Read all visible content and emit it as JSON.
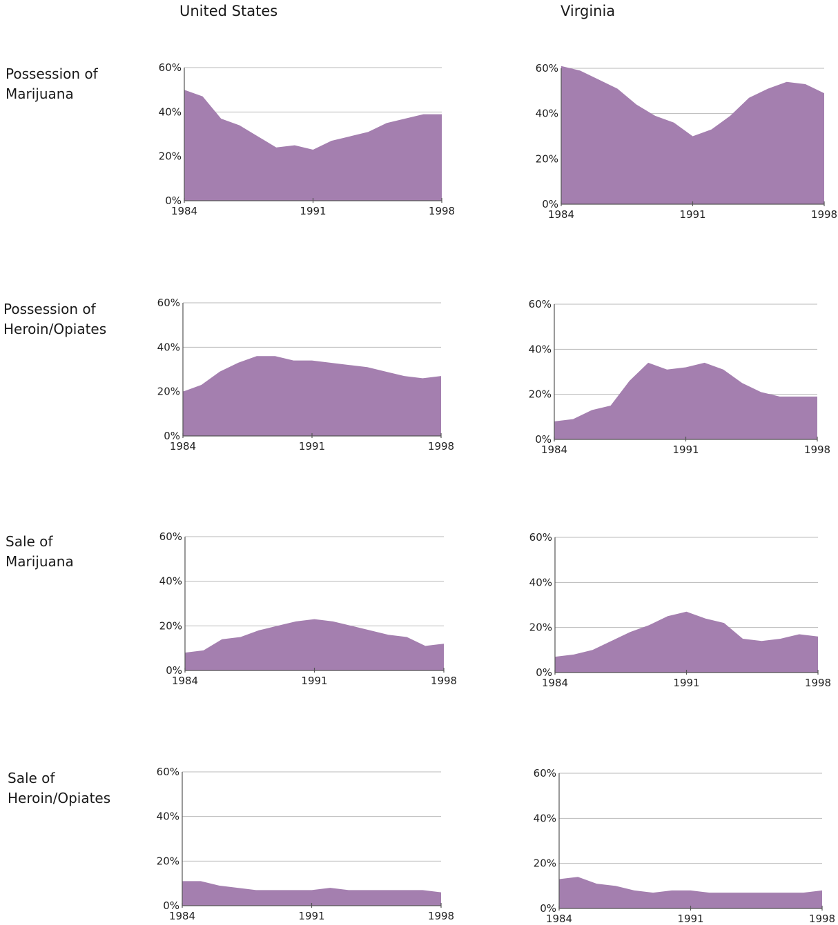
{
  "column_headers": [
    "United States",
    "Virginia"
  ],
  "row_labels": [
    [
      "Possession of",
      "Marijuana"
    ],
    [
      "Possession of",
      "Heroin/Opiates"
    ],
    [
      "Sale of",
      "Marijuana"
    ],
    [
      "Sale of",
      "Heroin/Opiates"
    ]
  ],
  "chart_data": [
    {
      "type": "area",
      "row": "Possession of Marijuana",
      "column": "United States",
      "x": [
        1984,
        1985,
        1986,
        1987,
        1988,
        1989,
        1990,
        1991,
        1992,
        1993,
        1994,
        1995,
        1996,
        1997,
        1998
      ],
      "values": [
        50,
        47,
        37,
        34,
        29,
        24,
        25,
        23,
        27,
        29,
        31,
        35,
        37,
        39,
        39
      ],
      "ylim": [
        0,
        60
      ],
      "yticks": [
        "0%",
        "20%",
        "40%",
        "60%"
      ],
      "xticks": [
        "1984",
        "1991",
        "1998"
      ],
      "grid": true,
      "color": "#a47faf"
    },
    {
      "type": "area",
      "row": "Possession of Marijuana",
      "column": "Virginia",
      "x": [
        1984,
        1985,
        1986,
        1987,
        1988,
        1989,
        1990,
        1991,
        1992,
        1993,
        1994,
        1995,
        1996,
        1997,
        1998
      ],
      "values": [
        61,
        59,
        55,
        51,
        44,
        39,
        36,
        30,
        33,
        39,
        47,
        51,
        54,
        53,
        49
      ],
      "ylim": [
        0,
        60
      ],
      "yticks": [
        "0%",
        "20%",
        "40%",
        "60%"
      ],
      "xticks": [
        "1984",
        "1991",
        "1998"
      ],
      "grid": true,
      "color": "#a47faf"
    },
    {
      "type": "area",
      "row": "Possession of Heroin/Opiates",
      "column": "United States",
      "x": [
        1984,
        1985,
        1986,
        1987,
        1988,
        1989,
        1990,
        1991,
        1992,
        1993,
        1994,
        1995,
        1996,
        1997,
        1998
      ],
      "values": [
        20,
        23,
        29,
        33,
        36,
        36,
        34,
        34,
        33,
        32,
        31,
        29,
        27,
        26,
        27
      ],
      "ylim": [
        0,
        60
      ],
      "yticks": [
        "0%",
        "20%",
        "40%",
        "60%"
      ],
      "xticks": [
        "1984",
        "1991",
        "1998"
      ],
      "grid": true,
      "color": "#a47faf"
    },
    {
      "type": "area",
      "row": "Possession of Heroin/Opiates",
      "column": "Virginia",
      "x": [
        1984,
        1985,
        1986,
        1987,
        1988,
        1989,
        1990,
        1991,
        1992,
        1993,
        1994,
        1995,
        1996,
        1997,
        1998
      ],
      "values": [
        8,
        9,
        13,
        15,
        26,
        34,
        31,
        32,
        34,
        31,
        25,
        21,
        19,
        19,
        19
      ],
      "ylim": [
        0,
        60
      ],
      "yticks": [
        "0%",
        "20%",
        "40%",
        "60%"
      ],
      "xticks": [
        "1984",
        "1991",
        "1998"
      ],
      "grid": true,
      "color": "#a47faf"
    },
    {
      "type": "area",
      "row": "Sale of Marijuana",
      "column": "United States",
      "x": [
        1984,
        1985,
        1986,
        1987,
        1988,
        1989,
        1990,
        1991,
        1992,
        1993,
        1994,
        1995,
        1996,
        1997,
        1998
      ],
      "values": [
        8,
        9,
        14,
        15,
        18,
        20,
        22,
        23,
        22,
        20,
        18,
        16,
        15,
        11,
        12
      ],
      "ylim": [
        0,
        60
      ],
      "yticks": [
        "0%",
        "20%",
        "40%",
        "60%"
      ],
      "xticks": [
        "1984",
        "1991",
        "1998"
      ],
      "grid": true,
      "color": "#a47faf"
    },
    {
      "type": "area",
      "row": "Sale of Marijuana",
      "column": "Virginia",
      "x": [
        1984,
        1985,
        1986,
        1987,
        1988,
        1989,
        1990,
        1991,
        1992,
        1993,
        1994,
        1995,
        1996,
        1997,
        1998
      ],
      "values": [
        7,
        8,
        10,
        14,
        18,
        21,
        25,
        27,
        24,
        22,
        15,
        14,
        15,
        17,
        16
      ],
      "ylim": [
        0,
        60
      ],
      "yticks": [
        "0%",
        "20%",
        "40%",
        "60%"
      ],
      "xticks": [
        "1984",
        "1991",
        "1998"
      ],
      "grid": true,
      "color": "#a47faf"
    },
    {
      "type": "area",
      "row": "Sale of Heroin/Opiates",
      "column": "United States",
      "x": [
        1984,
        1985,
        1986,
        1987,
        1988,
        1989,
        1990,
        1991,
        1992,
        1993,
        1994,
        1995,
        1996,
        1997,
        1998
      ],
      "values": [
        11,
        11,
        9,
        8,
        7,
        7,
        7,
        7,
        8,
        7,
        7,
        7,
        7,
        7,
        6
      ],
      "ylim": [
        0,
        60
      ],
      "yticks": [
        "0%",
        "20%",
        "40%",
        "60%"
      ],
      "xticks": [
        "1984",
        "1991",
        "1998"
      ],
      "grid": true,
      "color": "#a47faf"
    },
    {
      "type": "area",
      "row": "Sale of Heroin/Opiates",
      "column": "Virginia",
      "x": [
        1984,
        1985,
        1986,
        1987,
        1988,
        1989,
        1990,
        1991,
        1992,
        1993,
        1994,
        1995,
        1996,
        1997,
        1998
      ],
      "values": [
        13,
        14,
        11,
        10,
        8,
        7,
        8,
        8,
        7,
        7,
        7,
        7,
        7,
        7,
        8
      ],
      "ylim": [
        0,
        60
      ],
      "yticks": [
        "0%",
        "20%",
        "40%",
        "60%"
      ],
      "xticks": [
        "1984",
        "1991",
        "1998"
      ],
      "grid": true,
      "color": "#a47faf"
    }
  ]
}
